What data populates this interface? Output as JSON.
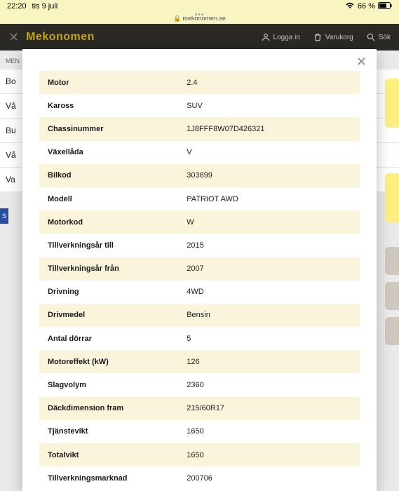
{
  "status": {
    "time": "22:20",
    "date": "tis 9 juli",
    "battery_pct": "66 %"
  },
  "browser": {
    "url": "mekonomen.se",
    "lock": "🔒"
  },
  "nav": {
    "logo": "Mekonomen",
    "login": "Logga in",
    "cart": "Varukorg",
    "search": "Sök"
  },
  "background_menu": {
    "heading": "MEN",
    "items": [
      "Bo",
      "Vå",
      "Bu",
      "Vå",
      "Va"
    ],
    "plate": "S"
  },
  "rows": [
    {
      "label": "Motor",
      "value": "2.4"
    },
    {
      "label": "Kaross",
      "value": "SUV"
    },
    {
      "label": "Chassinummer",
      "value": "1J8FFF8W07D426321"
    },
    {
      "label": "Växellåda",
      "value": "V"
    },
    {
      "label": "Bilkod",
      "value": "303899"
    },
    {
      "label": "Modell",
      "value": "PATRIOT AWD"
    },
    {
      "label": "Motorkod",
      "value": "W"
    },
    {
      "label": "Tillverkningsår till",
      "value": "2015"
    },
    {
      "label": "Tillverkningsår från",
      "value": "2007"
    },
    {
      "label": "Drivning",
      "value": "4WD"
    },
    {
      "label": "Drivmedel",
      "value": "Bensin"
    },
    {
      "label": "Antal dörrar",
      "value": "5"
    },
    {
      "label": "Motoreffekt (kW)",
      "value": "126"
    },
    {
      "label": "Slagvolym",
      "value": "2360"
    },
    {
      "label": "Däckdimension fram",
      "value": "215/60R17"
    },
    {
      "label": "Tjänstevikt",
      "value": "1650"
    },
    {
      "label": "Totalvikt",
      "value": "1650"
    },
    {
      "label": "Tillverkningsmarknad",
      "value": "200706"
    }
  ],
  "colors": {
    "alt_row": "#faf5da",
    "logo": "#c4a516",
    "nav_bg": "#2b2926",
    "status_bg": "#f9f5c0"
  }
}
